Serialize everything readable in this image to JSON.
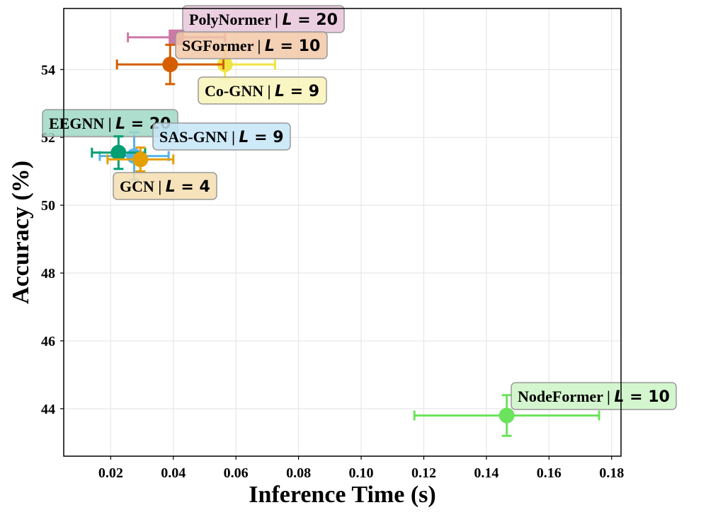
{
  "chart_data": {
    "type": "scatter",
    "xlabel": "Inference Time (s)",
    "ylabel": "Accuracy (%)",
    "xlim": [
      0.005,
      0.183
    ],
    "ylim": [
      42.6,
      55.8
    ],
    "xticks": [
      0.02,
      0.04,
      0.06,
      0.08,
      0.1,
      0.12,
      0.14,
      0.16,
      0.18
    ],
    "xtick_labels": [
      "0.02",
      "0.04",
      "0.06",
      "0.08",
      "0.10",
      "0.12",
      "0.14",
      "0.16",
      "0.18"
    ],
    "yticks": [
      44,
      46,
      48,
      50,
      52,
      54
    ],
    "ytick_labels": [
      "44",
      "46",
      "48",
      "50",
      "52",
      "54"
    ],
    "grid": true,
    "points": [
      {
        "model": "PolyNormer",
        "L": "20",
        "x": 0.041,
        "x_err": 0.0155,
        "y": 54.95,
        "y_err": 0.0,
        "color": "#cc79a7",
        "box_color": "#e8c5da",
        "marker": "square"
      },
      {
        "model": "SGFormer",
        "L": "10",
        "x": 0.039,
        "x_err": 0.017,
        "y": 54.15,
        "y_err": 0.58,
        "color": "#d55e00",
        "box_color": "#f2c8a8",
        "marker": "circle"
      },
      {
        "model": "Co-GNN",
        "L": "9",
        "x": 0.0565,
        "x_err": 0.016,
        "y": 54.15,
        "y_err": 0.42,
        "color": "#f0e442",
        "box_color": "#f9f4b8",
        "marker": "circle"
      },
      {
        "model": "EEGNN",
        "L": "20",
        "x": 0.0225,
        "x_err": 0.0085,
        "y": 51.55,
        "y_err": 0.48,
        "color": "#009e73",
        "box_color": "#9fd8c6",
        "marker": "circle"
      },
      {
        "model": "SAS-GNN",
        "L": "9",
        "x": 0.0275,
        "x_err": 0.011,
        "y": 51.45,
        "y_err": 0.7,
        "color": "#56b4e9",
        "box_color": "#c5e5f7",
        "marker": "circle"
      },
      {
        "model": "GCN",
        "L": "4",
        "x": 0.0295,
        "x_err": 0.0105,
        "y": 51.35,
        "y_err": 0.35,
        "color": "#e69f00",
        "box_color": "#f5deb0",
        "marker": "circle"
      },
      {
        "model": "NodeFormer",
        "L": "10",
        "x": 0.1465,
        "x_err": 0.0295,
        "y": 43.8,
        "y_err": 0.6,
        "color": "#6ce35c",
        "box_color": "#cdf5c6",
        "marker": "circle"
      }
    ],
    "label_sep": "|",
    "label_L_symbol": "L",
    "label_eq": "="
  }
}
